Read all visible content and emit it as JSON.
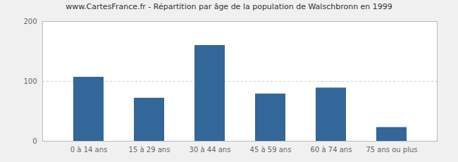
{
  "chart_data": {
    "type": "bar",
    "title": "www.CartesFrance.fr - Répartition par âge de la population de Walschbronn en 1999",
    "categories": [
      "0 à 14 ans",
      "15 à 29 ans",
      "30 à 44 ans",
      "45 à 59 ans",
      "60 à 74 ans",
      "75 ans ou plus"
    ],
    "values": [
      107,
      72,
      160,
      79,
      89,
      23
    ],
    "color": "#336699",
    "ylim": [
      0,
      200
    ],
    "yticks": [
      0,
      100,
      200
    ],
    "grid": true
  }
}
